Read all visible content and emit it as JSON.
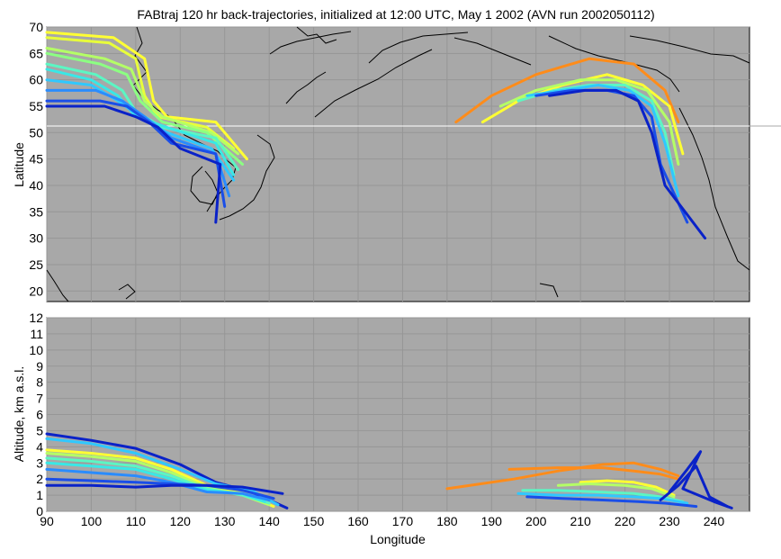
{
  "chart_data": [
    {
      "type": "line",
      "title": "FABtraj 120 hr back-trajectories, initialized at 12:00 UTC, May 1 2002 (AVN run 2002050112)",
      "xlabel": "",
      "ylabel": "Latitude",
      "xlim": [
        90,
        248
      ],
      "ylim": [
        18,
        70
      ],
      "y_ticks": [
        "20",
        "25",
        "30",
        "35",
        "40",
        "45",
        "50",
        "55",
        "60",
        "65",
        "70"
      ],
      "grid": true,
      "background": "#a8a8a8",
      "series": [
        {
          "group": "asia",
          "color": "#ffff33",
          "x": [
            90,
            105,
            112,
            114,
            117,
            128,
            135
          ],
          "y": [
            69,
            68,
            64,
            56,
            53,
            52,
            45
          ]
        },
        {
          "group": "asia",
          "color": "#e8ff3a",
          "x": [
            90,
            104,
            110,
            112,
            115,
            126,
            132
          ],
          "y": [
            68,
            67,
            64,
            57,
            53,
            51,
            47
          ]
        },
        {
          "group": "asia",
          "color": "#b4ff66",
          "x": [
            90,
            103,
            109,
            112,
            116,
            127,
            133
          ],
          "y": [
            66,
            64,
            62,
            56,
            53,
            50,
            46
          ]
        },
        {
          "group": "asia",
          "color": "#8cff82",
          "x": [
            90,
            102,
            108,
            111,
            116,
            126,
            134
          ],
          "y": [
            65,
            63,
            61,
            56,
            52,
            50,
            44
          ]
        },
        {
          "group": "asia",
          "color": "#5cf6c3",
          "x": [
            90,
            101,
            107,
            110,
            116,
            128,
            133
          ],
          "y": [
            63,
            61,
            58,
            54,
            51,
            49,
            43
          ]
        },
        {
          "group": "asia",
          "color": "#39e8e6",
          "x": [
            90,
            100,
            106,
            110,
            117,
            128,
            132
          ],
          "y": [
            62,
            60,
            57,
            53,
            51,
            48,
            42
          ]
        },
        {
          "group": "asia",
          "color": "#30c8ff",
          "x": [
            90,
            100,
            106,
            111,
            117,
            127,
            132
          ],
          "y": [
            60,
            59,
            56,
            53,
            50,
            47,
            41
          ]
        },
        {
          "group": "asia",
          "color": "#2a8cff",
          "x": [
            90,
            101,
            107,
            112,
            118,
            128,
            131
          ],
          "y": [
            58,
            58,
            56,
            53,
            49,
            46,
            38
          ]
        },
        {
          "group": "asia",
          "color": "#1a4ee8",
          "x": [
            90,
            102,
            108,
            113,
            118,
            128,
            130
          ],
          "y": [
            56,
            56,
            55,
            52,
            48,
            46,
            36
          ]
        },
        {
          "group": "asia",
          "color": "#0a22c8",
          "x": [
            90,
            103,
            110,
            115,
            120,
            129,
            128
          ],
          "y": [
            55,
            55,
            53,
            51,
            47,
            44,
            33
          ]
        },
        {
          "group": "n-america",
          "color": "#ff8c1a",
          "x": [
            182,
            190,
            200,
            212,
            222,
            229,
            232
          ],
          "y": [
            52,
            57,
            61,
            64,
            63,
            58,
            52
          ]
        },
        {
          "group": "n-america",
          "color": "#ffff33",
          "x": [
            188,
            196,
            206,
            216,
            224,
            230,
            233
          ],
          "y": [
            52,
            56,
            59,
            61,
            59,
            55,
            46
          ]
        },
        {
          "group": "n-america",
          "color": "#b4ff66",
          "x": [
            192,
            200,
            210,
            218,
            225,
            230,
            232
          ],
          "y": [
            55,
            58,
            60,
            60,
            58,
            52,
            44
          ]
        },
        {
          "group": "n-america",
          "color": "#5cf6c3",
          "x": [
            196,
            204,
            212,
            220,
            226,
            229,
            231
          ],
          "y": [
            56,
            58,
            59,
            59,
            56,
            50,
            42
          ]
        },
        {
          "group": "n-america",
          "color": "#30c8ff",
          "x": [
            198,
            206,
            214,
            221,
            226,
            229,
            232
          ],
          "y": [
            57,
            58,
            59,
            58,
            55,
            48,
            38
          ]
        },
        {
          "group": "n-america",
          "color": "#1a4ee8",
          "x": [
            200,
            208,
            216,
            222,
            226,
            228,
            234
          ],
          "y": [
            57,
            58,
            58,
            57,
            53,
            44,
            33
          ]
        },
        {
          "group": "n-america",
          "color": "#0a22c8",
          "x": [
            203,
            211,
            218,
            223,
            226,
            229,
            238
          ],
          "y": [
            57,
            58,
            58,
            56,
            50,
            40,
            30
          ]
        }
      ]
    },
    {
      "type": "line",
      "title": "",
      "xlabel": "Longitude",
      "ylabel": "Altitude, km a.s.l.",
      "xlim": [
        90,
        248
      ],
      "ylim": [
        0,
        12
      ],
      "x_ticks": [
        "90",
        "100",
        "110",
        "120",
        "130",
        "140",
        "150",
        "160",
        "170",
        "180",
        "190",
        "200",
        "210",
        "220",
        "230",
        "240"
      ],
      "y_ticks": [
        "0",
        "1",
        "2",
        "3",
        "4",
        "5",
        "6",
        "7",
        "8",
        "9",
        "10",
        "11",
        "12"
      ],
      "grid": true,
      "background": "#a8a8a8",
      "series": [
        {
          "group": "asia",
          "color": "#0a22c8",
          "x": [
            90,
            100,
            110,
            120,
            128,
            136,
            144
          ],
          "y": [
            4.8,
            4.4,
            3.9,
            2.9,
            1.8,
            1.2,
            0.2
          ]
        },
        {
          "group": "asia",
          "color": "#30c8ff",
          "x": [
            90,
            100,
            110,
            120,
            128,
            136,
            142
          ],
          "y": [
            4.5,
            4.2,
            3.6,
            2.6,
            1.7,
            1.3,
            0.4
          ]
        },
        {
          "group": "asia",
          "color": "#ffff33",
          "x": [
            90,
            100,
            110,
            118,
            126,
            134,
            141
          ],
          "y": [
            3.8,
            3.6,
            3.3,
            2.6,
            1.6,
            1.1,
            0.3
          ]
        },
        {
          "group": "asia",
          "color": "#b4ff66",
          "x": [
            90,
            100,
            110,
            118,
            126,
            134,
            140
          ],
          "y": [
            3.6,
            3.4,
            3.1,
            2.4,
            1.5,
            1.0,
            0.4
          ]
        },
        {
          "group": "asia",
          "color": "#5cf6c3",
          "x": [
            90,
            100,
            110,
            118,
            126,
            134,
            140
          ],
          "y": [
            3.3,
            3.1,
            2.8,
            2.2,
            1.4,
            1.0,
            0.5
          ]
        },
        {
          "group": "asia",
          "color": "#39e8e6",
          "x": [
            90,
            100,
            110,
            118,
            126,
            134,
            139
          ],
          "y": [
            3.0,
            2.8,
            2.6,
            2.0,
            1.3,
            1.1,
            0.6
          ]
        },
        {
          "group": "asia",
          "color": "#2a8cff",
          "x": [
            90,
            100,
            110,
            118,
            126,
            134,
            140
          ],
          "y": [
            2.6,
            2.4,
            2.2,
            1.8,
            1.2,
            1.1,
            0.7
          ]
        },
        {
          "group": "asia",
          "color": "#1a4ee8",
          "x": [
            90,
            100,
            110,
            118,
            126,
            134,
            141
          ],
          "y": [
            2.0,
            1.9,
            1.8,
            1.7,
            1.6,
            1.3,
            0.8
          ]
        },
        {
          "group": "asia",
          "color": "#0a22c8",
          "x": [
            90,
            100,
            110,
            118,
            126,
            134,
            143
          ],
          "y": [
            1.6,
            1.6,
            1.5,
            1.6,
            1.6,
            1.5,
            1.1
          ]
        },
        {
          "group": "n-america",
          "color": "#ff8c1a",
          "x": [
            180,
            195,
            205,
            215,
            222,
            228,
            232
          ],
          "y": [
            1.4,
            2.0,
            2.5,
            2.9,
            3.0,
            2.6,
            2.2
          ]
        },
        {
          "group": "n-america",
          "color": "#ff8c1a",
          "x": [
            194,
            205,
            215,
            222,
            228,
            232
          ],
          "y": [
            2.6,
            2.7,
            2.7,
            2.5,
            2.3,
            2.0
          ]
        },
        {
          "group": "n-america",
          "color": "#ffff33",
          "x": [
            210,
            216,
            222,
            227,
            231
          ],
          "y": [
            1.8,
            1.9,
            1.8,
            1.5,
            1.0
          ]
        },
        {
          "group": "n-america",
          "color": "#b4ff66",
          "x": [
            205,
            212,
            220,
            226,
            231
          ],
          "y": [
            1.6,
            1.7,
            1.6,
            1.4,
            0.9
          ]
        },
        {
          "group": "n-america",
          "color": "#5cf6c3",
          "x": [
            197,
            205,
            214,
            222,
            228,
            233
          ],
          "y": [
            1.3,
            1.3,
            1.2,
            1.1,
            0.9,
            0.6
          ]
        },
        {
          "group": "n-america",
          "color": "#30c8ff",
          "x": [
            196,
            205,
            214,
            222,
            228,
            234
          ],
          "y": [
            1.1,
            1.0,
            1.0,
            0.9,
            0.8,
            0.5
          ]
        },
        {
          "group": "n-america",
          "color": "#1a4ee8",
          "x": [
            198,
            206,
            215,
            223,
            229,
            236
          ],
          "y": [
            0.9,
            0.8,
            0.7,
            0.6,
            0.5,
            0.3
          ]
        },
        {
          "group": "n-america",
          "color": "#0a22c8",
          "x": [
            228,
            232,
            236,
            239,
            243
          ],
          "y": [
            0.7,
            1.6,
            2.8,
            0.9,
            0.3
          ]
        },
        {
          "group": "n-america",
          "color": "#0a22c8",
          "x": [
            230,
            234,
            237,
            233,
            240,
            244
          ],
          "y": [
            1.2,
            2.6,
            3.7,
            1.4,
            0.6,
            0.2
          ]
        }
      ]
    }
  ]
}
